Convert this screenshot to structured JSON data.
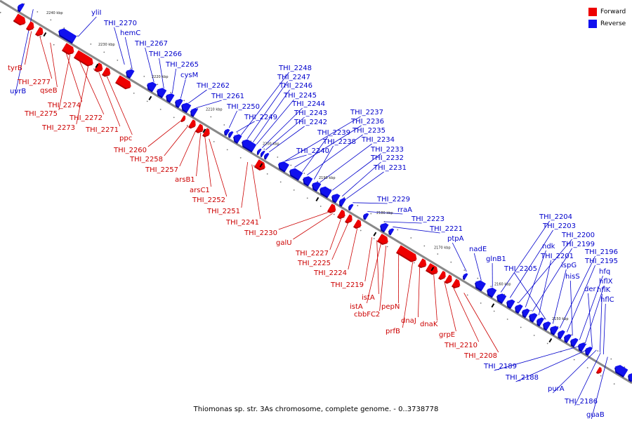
{
  "colors": {
    "forward": "#ee0000",
    "reverse": "#1111ee",
    "forward_side": "#b00000",
    "reverse_side": "#0000a0",
    "forward_label": "#cc0000",
    "reverse_label": "#0000cc",
    "backbone": "#888888"
  },
  "legend": {
    "items": [
      {
        "label": "Forward",
        "color": "#ee0000"
      },
      {
        "label": "Reverse",
        "color": "#1111ee"
      }
    ]
  },
  "caption": "Thiomonas sp. str. 3As chromosome, complete genome. - 0..3738778",
  "ticks": [
    "2240 kbp",
    "2230 kbp",
    "2220 kbp",
    "2210 kbp",
    "2200 kbp",
    "2190 kbp",
    "2180 kbp",
    "2170 kbp",
    "2160 kbp",
    "2150 kbp"
  ],
  "reverse_labels": [
    "yliI",
    "THI_2270",
    "hemC",
    "THI_2267",
    "THI_2266",
    "THI_2265",
    "cysM",
    "THI_2262",
    "THI_2261",
    "THI_2250",
    "THI_2249",
    "THI_2248",
    "THI_2247",
    "THI_2246",
    "THI_2245",
    "THI_2244",
    "THI_2243",
    "THI_2242",
    "THI_2237",
    "THI_2236",
    "THI_2239",
    "THI_2235",
    "THI_2238",
    "THI_2234",
    "THI_2240",
    "THI_2233",
    "THI_2232",
    "THI_2231",
    "THI_2229",
    "rraA",
    "THI_2223",
    "THI_2221",
    "ptpA",
    "nadE",
    "glnB1",
    "THI_2204",
    "THI_2203",
    "THI_2200",
    "ndk",
    "THI_2199",
    "THI_2201",
    "THI_2205",
    "ispG",
    "THI_2196",
    "THI_2195",
    "hisS",
    "hfq",
    "hflX",
    "der",
    "hflK",
    "hflC",
    "THI_2189",
    "THI_2188",
    "purA",
    "THI_2186",
    "guaB",
    "uvrB"
  ],
  "forward_labels": [
    "tyrB",
    "THI_2277",
    "qseB",
    "THI_2274",
    "THI_2275",
    "THI_2272",
    "THI_2273",
    "THI_2271",
    "ppc",
    "THI_2260",
    "THI_2258",
    "THI_2257",
    "arsB1",
    "arsC1",
    "THI_2252",
    "THI_2251",
    "THI_2241",
    "THI_2230",
    "galU",
    "THI_2227",
    "THI_2225",
    "THI_2224",
    "THI_2219",
    "istA",
    "istA",
    "cbbFC2",
    "pepN",
    "prfB",
    "dnaJ",
    "dnaK",
    "grpE",
    "THI_2210",
    "THI_2208"
  ]
}
